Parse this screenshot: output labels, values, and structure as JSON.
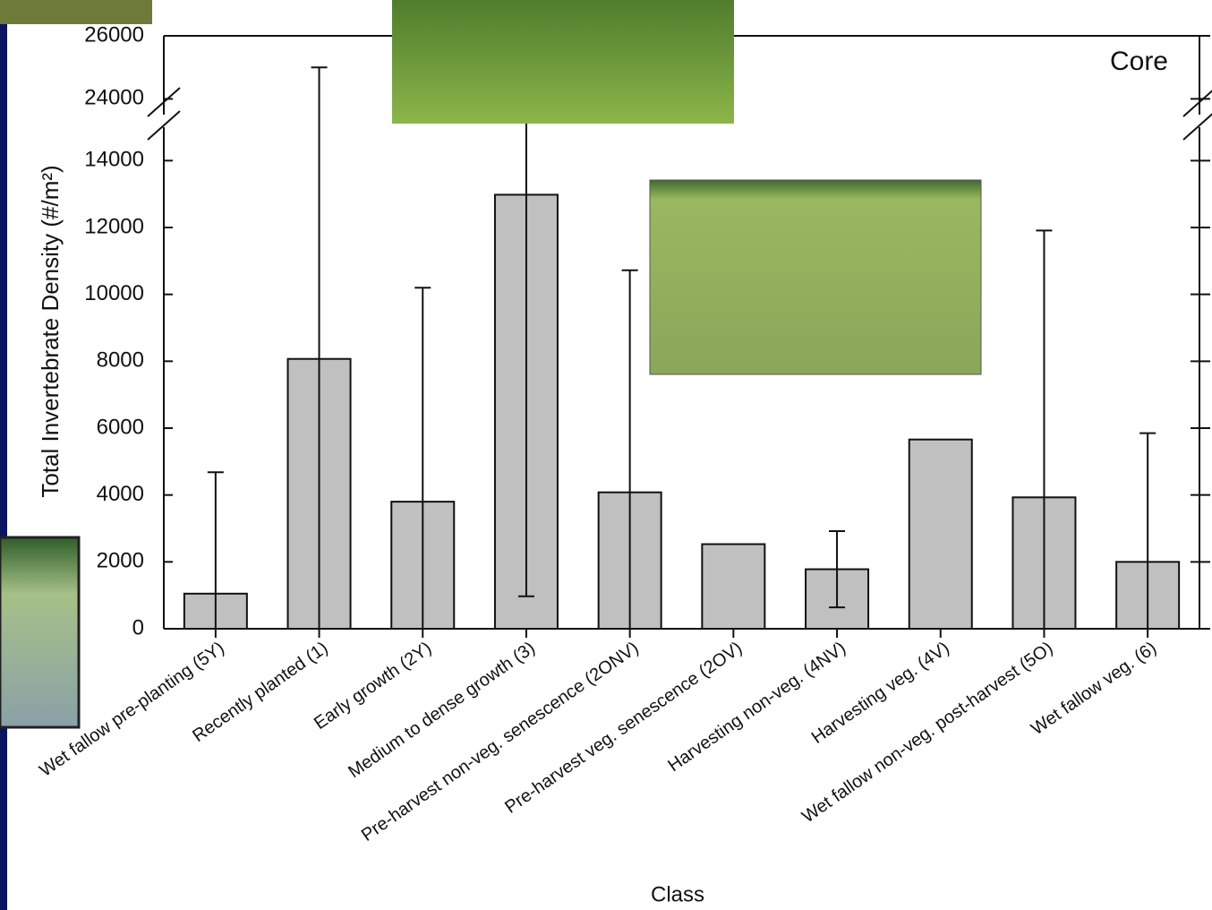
{
  "chart_data": {
    "type": "bar",
    "annotation": "Core",
    "x_label": "Class",
    "y_label": "Total Invertebrate Density (#/m²)",
    "categories": [
      "Wet fallow pre-planting (5Y)",
      "Recently planted (1)",
      "Early growth (2Y)",
      "Medium to dense growth (3)",
      "Pre-harvest non-veg. senescence (2ONV)",
      "Pre-harvest veg. senescence (2OV)",
      "Harvesting non-veg. (4NV)",
      "Harvesting veg. (4V)",
      "Wet fallow non-veg. post-harvest (5O)",
      "Wet fallow veg. (6)"
    ],
    "values": [
      1050,
      8070,
      3800,
      12980,
      4080,
      2530,
      1780,
      5660,
      3930,
      2000
    ],
    "errors": [
      3630,
      16930,
      6400,
      12010,
      6640,
      null,
      1140,
      null,
      7980,
      3850
    ],
    "color": "#c0c0c0",
    "ylim": [
      0,
      15000
    ],
    "yticks": [
      0,
      2000,
      4000,
      6000,
      8000,
      10000,
      12000,
      14000
    ],
    "upper_ylim": [
      23500,
      26000
    ],
    "upper_yticks": [
      24000,
      26000
    ]
  }
}
